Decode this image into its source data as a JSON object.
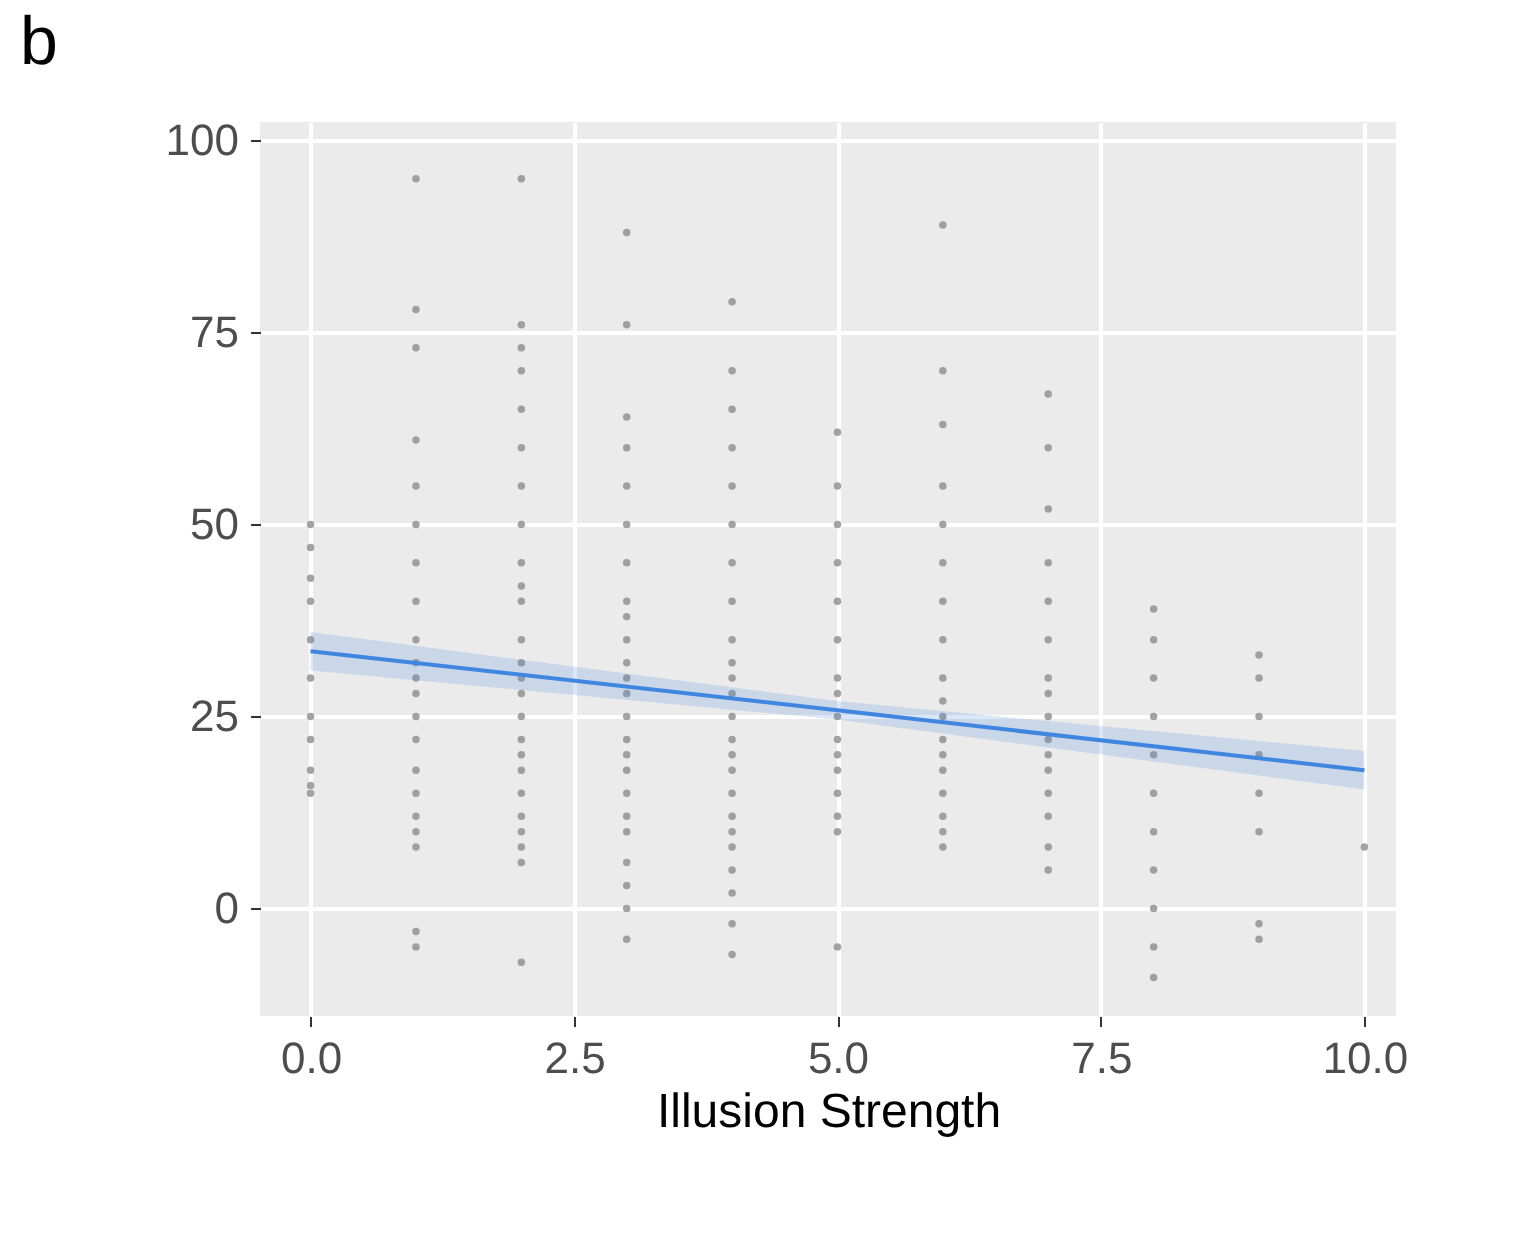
{
  "chart_data": {
    "type": "scatter",
    "title": "b",
    "xlabel": "Illusion Strength",
    "xlim": [
      -0.48,
      10.3
    ],
    "ylim": [
      -14,
      102.4
    ],
    "xticks": [
      {
        "value": 0,
        "label": "0.0"
      },
      {
        "value": 2.5,
        "label": "2.5"
      },
      {
        "value": 5,
        "label": "5.0"
      },
      {
        "value": 7.5,
        "label": "7.5"
      },
      {
        "value": 10,
        "label": "10.0"
      }
    ],
    "yticks": [
      0,
      25,
      50,
      75,
      100
    ],
    "grid": true,
    "marker": "circle",
    "series": [
      {
        "color": "#8c8c8c",
        "x": [
          0,
          0,
          0,
          0,
          0,
          0,
          0,
          0,
          0,
          0,
          0,
          1,
          1,
          1,
          1,
          1,
          1,
          1,
          1,
          1,
          1,
          1,
          1,
          1,
          1,
          1,
          1,
          1,
          1,
          1,
          1,
          1,
          2,
          2,
          2,
          2,
          2,
          2,
          2,
          2,
          2,
          2,
          2,
          2,
          2,
          2,
          2,
          2,
          2,
          2,
          2,
          2,
          2,
          2,
          2,
          2,
          2,
          3,
          3,
          3,
          3,
          3,
          3,
          3,
          3,
          3,
          3,
          3,
          3,
          3,
          3,
          3,
          3,
          3,
          3,
          3,
          3,
          3,
          3,
          3,
          3,
          4,
          4,
          4,
          4,
          4,
          4,
          4,
          4,
          4,
          4,
          4,
          4,
          4,
          4,
          4,
          4,
          4,
          4,
          4,
          4,
          4,
          4,
          4,
          4,
          5,
          5,
          5,
          5,
          5,
          5,
          5,
          5,
          5,
          5,
          5,
          5,
          5,
          5,
          5,
          5,
          6,
          6,
          6,
          6,
          6,
          6,
          6,
          6,
          6,
          6,
          6,
          6,
          6,
          6,
          6,
          6,
          6,
          6,
          7,
          7,
          7,
          7,
          7,
          7,
          7,
          7,
          7,
          7,
          7,
          7,
          7,
          7,
          7,
          7,
          8,
          8,
          8,
          8,
          8,
          8,
          8,
          8,
          8,
          8,
          8,
          9,
          9,
          9,
          9,
          9,
          9,
          9,
          9,
          10
        ],
        "values": [
          50,
          47,
          43,
          40,
          35,
          30,
          25,
          22,
          18,
          16,
          15,
          95,
          78,
          73,
          61,
          55,
          50,
          45,
          40,
          35,
          32,
          30,
          28,
          25,
          22,
          18,
          15,
          12,
          10,
          8,
          -3,
          -5,
          95,
          76,
          73,
          70,
          65,
          60,
          55,
          50,
          45,
          42,
          40,
          35,
          32,
          30,
          28,
          25,
          22,
          20,
          18,
          15,
          12,
          10,
          8,
          6,
          -7,
          88,
          76,
          64,
          60,
          55,
          50,
          45,
          40,
          38,
          35,
          32,
          30,
          28,
          25,
          22,
          20,
          18,
          15,
          12,
          10,
          6,
          3,
          0,
          -4,
          79,
          70,
          65,
          60,
          55,
          50,
          45,
          40,
          35,
          32,
          30,
          28,
          25,
          22,
          20,
          18,
          15,
          12,
          10,
          8,
          5,
          2,
          -2,
          -6,
          62,
          55,
          50,
          45,
          40,
          35,
          30,
          28,
          25,
          22,
          20,
          18,
          15,
          12,
          10,
          -5,
          89,
          70,
          63,
          55,
          50,
          45,
          40,
          35,
          30,
          27,
          25,
          22,
          20,
          18,
          15,
          12,
          10,
          8,
          67,
          60,
          52,
          45,
          40,
          35,
          30,
          28,
          25,
          22,
          20,
          18,
          15,
          12,
          8,
          5,
          39,
          35,
          30,
          25,
          20,
          15,
          10,
          5,
          0,
          -5,
          -9,
          33,
          30,
          25,
          20,
          15,
          10,
          -2,
          -4,
          8
        ]
      },
      {
        "type": "line",
        "marker": "none",
        "color": "#3f86e0",
        "x": [
          0,
          5,
          10
        ],
        "values": [
          33.5,
          25.8,
          18
        ],
        "lower": [
          31,
          24.6,
          15.5
        ],
        "upper": [
          36,
          27,
          20.5
        ]
      }
    ]
  }
}
